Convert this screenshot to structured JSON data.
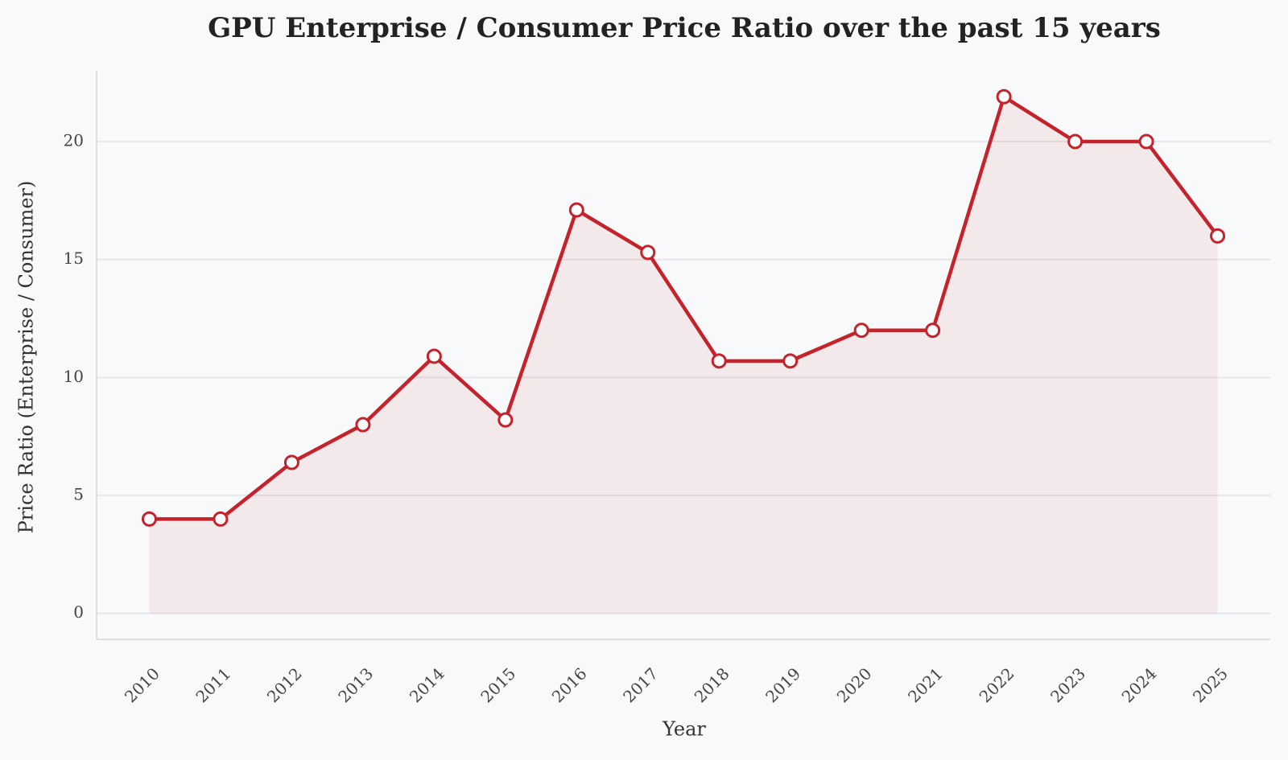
{
  "chart_data": {
    "type": "line",
    "title": "GPU Enterprise / Consumer Price Ratio over the past 15 years",
    "x_label": "Year",
    "y_label": "Price Ratio (Enterprise / Consumer)",
    "categories": [
      "2010",
      "2011",
      "2012",
      "2013",
      "2014",
      "2015",
      "2016",
      "2017",
      "2018",
      "2019",
      "2020",
      "2021",
      "2022",
      "2023",
      "2024",
      "2025"
    ],
    "series": [
      {
        "name": "Price Ratio",
        "color": "#c4232b",
        "values": [
          4,
          4,
          6.4,
          8,
          10.9,
          8.2,
          17.1,
          15.3,
          10.7,
          10.7,
          12,
          12,
          21.9,
          20,
          20,
          16
        ]
      }
    ],
    "ylim": [
      -1.1,
      23
    ],
    "yticks": [
      0,
      5,
      10,
      15,
      20
    ],
    "grid": true,
    "area_fill": true
  }
}
